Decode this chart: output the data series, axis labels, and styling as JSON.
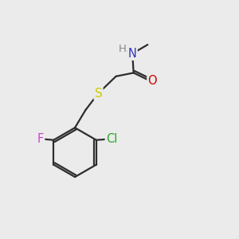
{
  "bg_color": "#ebebeb",
  "bond_color": "#2d2d2d",
  "bond_width": 1.6,
  "atom_colors": {
    "N": "#3333bb",
    "O": "#cc0000",
    "S": "#cccc00",
    "Cl": "#22aa22",
    "F": "#cc44cc",
    "H": "#888888",
    "C": "#2d2d2d"
  },
  "font_size": 10.5,
  "fig_size": [
    3.0,
    3.0
  ],
  "dpi": 100
}
